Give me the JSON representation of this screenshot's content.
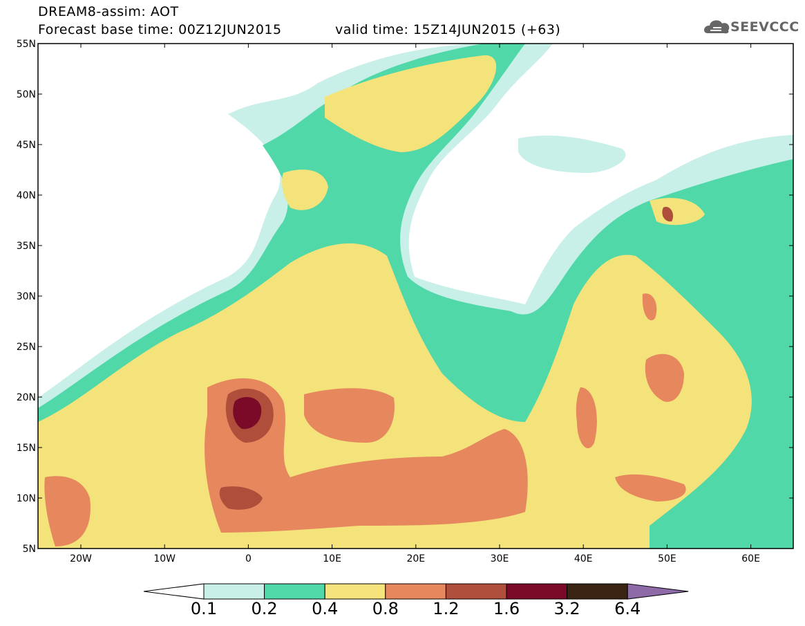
{
  "header": {
    "title": "DREAM8-assim: AOT",
    "base_time": "Forecast base time: 00Z12JUN2015",
    "valid_time": "valid time: 15Z14JUN2015 (+63)",
    "logo_text": "SEEVCCC"
  },
  "map": {
    "lat_labels": [
      "55N",
      "50N",
      "45N",
      "40N",
      "35N",
      "30N",
      "25N",
      "20N",
      "15N",
      "10N",
      "5N"
    ],
    "lon_labels": [
      "20W",
      "10W",
      "0",
      "10E",
      "20E",
      "30E",
      "40E",
      "50E",
      "60E"
    ]
  },
  "colorbar": {
    "labels": [
      "0.1",
      "0.2",
      "0.4",
      "0.8",
      "1.2",
      "1.6",
      "3.2",
      "6.4"
    ],
    "colors": [
      "#ffffff",
      "#c8f0e8",
      "#50d8a8",
      "#f4e27a",
      "#e6875e",
      "#b04e3c",
      "#7a0a28",
      "#3a2414",
      "#8e6aa8"
    ]
  }
}
